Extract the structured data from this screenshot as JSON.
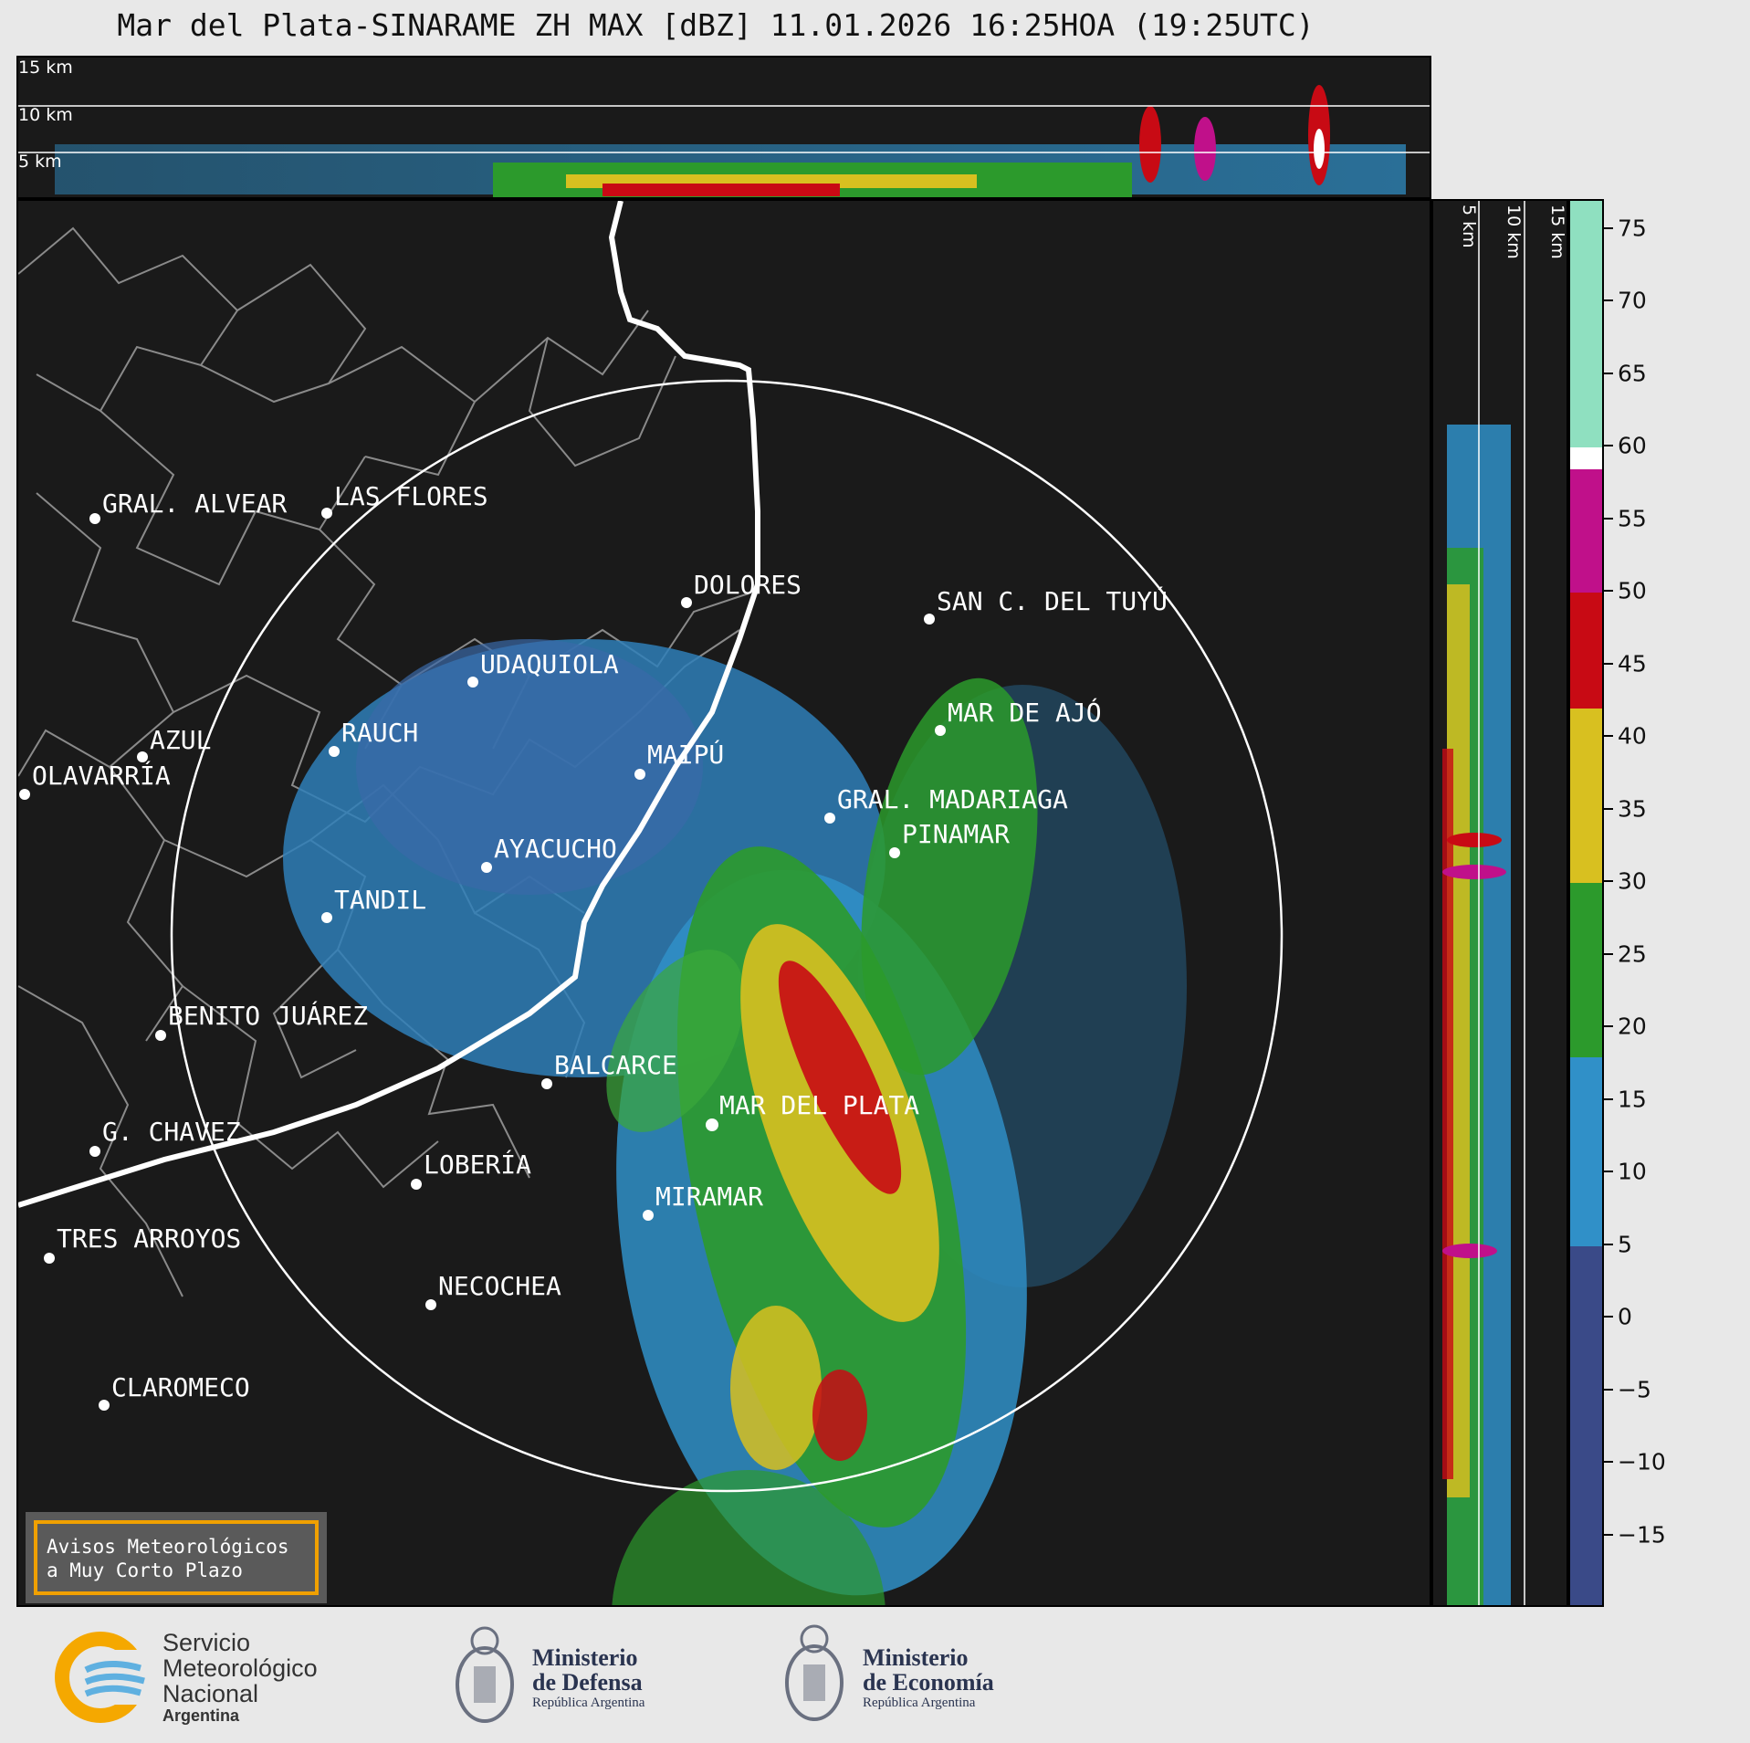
{
  "title": "Mar del Plata-SINARAME ZH MAX [dBZ] 11.01.2026 16:25HOA (19:25UTC)",
  "top_panel_altitudes": [
    "15 km",
    "10 km",
    "5 km"
  ],
  "side_panel_altitudes": [
    "5 km",
    "10 km",
    "15 km"
  ],
  "colorbar": {
    "unit": "dBZ",
    "ticks": [
      "75",
      "70",
      "65",
      "60",
      "55",
      "50",
      "45",
      "40",
      "35",
      "30",
      "25",
      "20",
      "15",
      "10",
      "5",
      "0",
      "−5",
      "−10",
      "−15"
    ],
    "range": [
      -20,
      77
    ],
    "colors": [
      {
        "from": 60,
        "to": 77,
        "color": "#8fe0c0"
      },
      {
        "from": 58.5,
        "to": 60,
        "color": "#ffffff"
      },
      {
        "from": 50,
        "to": 58.5,
        "color": "#c0108a"
      },
      {
        "from": 42,
        "to": 50,
        "color": "#c80a14"
      },
      {
        "from": 30,
        "to": 42,
        "color": "#d8c020"
      },
      {
        "from": 18,
        "to": 30,
        "color": "#2c9a2c"
      },
      {
        "from": 5,
        "to": 18,
        "color": "#3090c8"
      },
      {
        "from": -20,
        "to": 5,
        "color": "#3a4a88"
      }
    ]
  },
  "cities": [
    {
      "name": "GRAL. ALVEAR"
    },
    {
      "name": "LAS FLORES"
    },
    {
      "name": "DOLORES"
    },
    {
      "name": "SAN C. DEL TUYÚ"
    },
    {
      "name": "UDAQUIOLA"
    },
    {
      "name": "MAR DE AJÓ"
    },
    {
      "name": "AZUL"
    },
    {
      "name": "RAUCH"
    },
    {
      "name": "OLAVARRÍA"
    },
    {
      "name": "MAIPÚ"
    },
    {
      "name": "GRAL. MADARIAGA"
    },
    {
      "name": "PINAMAR"
    },
    {
      "name": "AYACUCHO"
    },
    {
      "name": "TANDIL"
    },
    {
      "name": "BENITO JUÁREZ"
    },
    {
      "name": "BALCARCE"
    },
    {
      "name": "MAR DEL PLATA"
    },
    {
      "name": "G. CHAVEZ"
    },
    {
      "name": "LOBERÍA"
    },
    {
      "name": "MIRAMAR"
    },
    {
      "name": "TRES ARROYOS"
    },
    {
      "name": "NECOCHEA"
    },
    {
      "name": "CLAROMECO"
    }
  ],
  "avisos": {
    "line1": "Avisos Meteorológicos",
    "line2": "a Muy Corto Plazo"
  },
  "logos": {
    "smn": {
      "line1": "Servicio",
      "line2": "Meteorológico",
      "line3": "Nacional",
      "line4": "Argentina"
    },
    "defensa": {
      "line1": "Ministerio",
      "line2": "de Defensa",
      "line3": "República Argentina"
    },
    "economia": {
      "line1": "Ministerio",
      "line2": "de Economía",
      "line3": "República Argentina"
    }
  }
}
